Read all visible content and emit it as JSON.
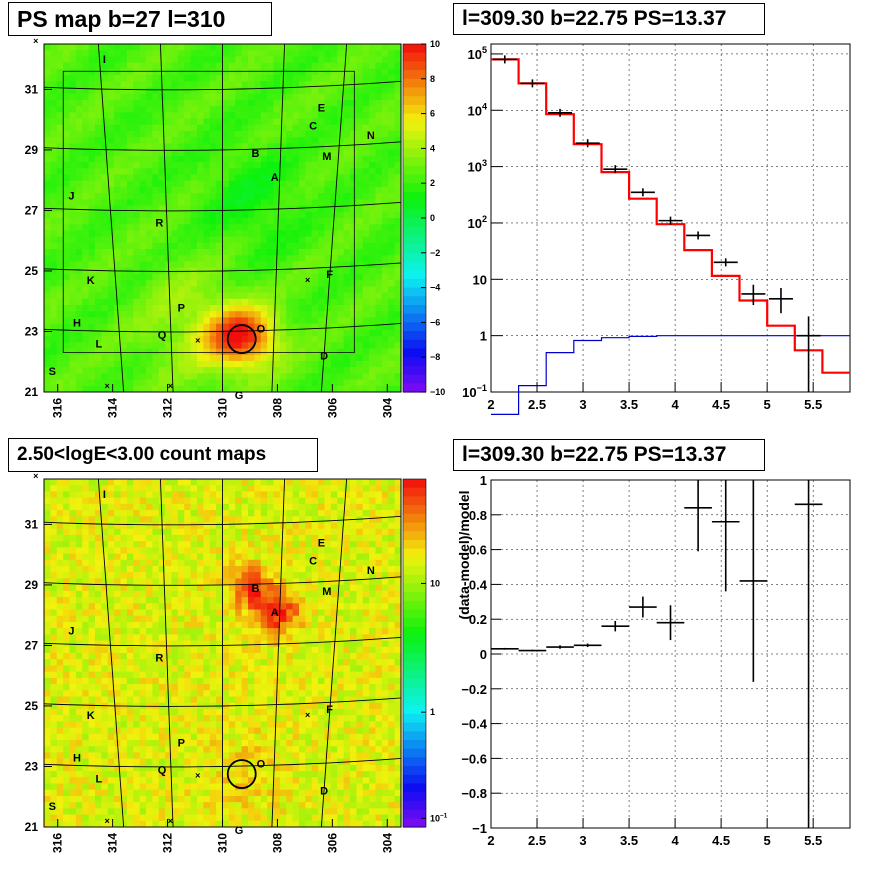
{
  "panels": {
    "ps_map": {
      "title": "PS map b=27 l=310",
      "lon_ticks": [
        "316",
        "314",
        "312",
        "310",
        "308",
        "306",
        "304"
      ],
      "lat_ticks": [
        "31",
        "29",
        "27",
        "25",
        "23",
        "21"
      ],
      "colorbar_ticks": [
        "10",
        "8",
        "6",
        "4",
        "2",
        "0",
        "−2",
        "−4",
        "−6",
        "−8",
        "−10"
      ]
    },
    "spectrum": {
      "title": "l=309.30 b=22.75 PS=13.37",
      "x_ticks": [
        "2",
        "2.5",
        "3",
        "3.5",
        "4",
        "4.5",
        "5",
        "5.5"
      ],
      "y_ticks": [
        "10^5",
        "10^4",
        "10^3",
        "10^2",
        "10",
        "1",
        "10^-1"
      ]
    },
    "count_map": {
      "title": "2.50<logE<3.00 count maps",
      "lon_ticks": [
        "316",
        "314",
        "312",
        "310",
        "308",
        "306",
        "304"
      ],
      "lat_ticks": [
        "31",
        "29",
        "27",
        "25",
        "23",
        "21"
      ],
      "colorbar_ticks": [
        "10",
        "1",
        "10^-1"
      ]
    },
    "residual": {
      "title": "l=309.30 b=22.75 PS=13.37",
      "ylabel": "(data-model)/model",
      "x_ticks": [
        "2",
        "2.5",
        "3",
        "3.5",
        "4",
        "4.5",
        "5",
        "5.5"
      ],
      "y_ticks": [
        "1",
        "0.8",
        "0.6",
        "0.4",
        "0.2",
        "0",
        "−0.2",
        "−0.4",
        "−0.6",
        "−0.8",
        "−1"
      ]
    }
  },
  "source_labels": [
    "I",
    "E",
    "C",
    "N",
    "B",
    "M",
    "A",
    "J",
    "R",
    "K",
    "F",
    "P",
    "H",
    "O",
    "Q",
    "L",
    "D",
    "S",
    "G"
  ],
  "colors": {
    "model": "#ff0000",
    "background": "#0000cc",
    "data": "#000000"
  },
  "chart_data": [
    {
      "type": "heatmap",
      "title": "PS map b=27 l=310",
      "xlabel": "",
      "ylabel": "",
      "xlim": [
        316.5,
        303.5
      ],
      "ylim": [
        21,
        32.5
      ],
      "zlim": [
        -10,
        10
      ],
      "peak": {
        "l": 309.3,
        "b": 22.75,
        "ps": 13.37
      }
    },
    {
      "type": "line",
      "title": "l=309.30 b=22.75 PS=13.37",
      "xlabel": "",
      "ylabel": "",
      "xlim": [
        2,
        5.9
      ],
      "ylim": [
        0.1,
        150000
      ],
      "yscale": "log",
      "series": [
        {
          "style": "data",
          "x": [
            2.15,
            2.45,
            2.75,
            3.05,
            3.35,
            3.65,
            3.95,
            4.25,
            4.55,
            4.85,
            5.15,
            5.45
          ],
          "values": [
            80000,
            30000,
            9000,
            2600,
            900,
            350,
            110,
            60,
            20,
            5.5,
            4.5,
            1.0
          ],
          "yerr_low": [
            0,
            0,
            0,
            0,
            0,
            0,
            0,
            0,
            0,
            2.0,
            2.0,
            0.9
          ],
          "yerr_high": [
            0,
            0,
            0,
            0,
            0,
            0,
            0,
            0,
            0,
            2.5,
            2.5,
            1.2
          ]
        },
        {
          "style": "model_step",
          "edges": [
            2,
            2.3,
            2.6,
            2.9,
            3.2,
            3.5,
            3.8,
            4.1,
            4.4,
            4.7,
            5.0,
            5.3,
            5.6,
            5.9
          ],
          "values": [
            80000,
            30000,
            8500,
            2500,
            800,
            270,
            95,
            33,
            11.5,
            4.2,
            1.5,
            0.55,
            0.22
          ]
        },
        {
          "style": "background_step",
          "edges": [
            2,
            2.3,
            2.6,
            2.9,
            3.2,
            3.5,
            3.8,
            4.1,
            4.4,
            4.7,
            5.0,
            5.3,
            5.6,
            5.9
          ],
          "values": [
            0.04,
            0.13,
            0.5,
            0.82,
            0.92,
            0.97,
            1,
            1,
            1,
            1,
            1,
            1,
            1
          ]
        }
      ]
    },
    {
      "type": "heatmap",
      "title": "2.50<logE<3.00 count maps",
      "xlabel": "",
      "ylabel": "",
      "xlim": [
        316.5,
        303.5
      ],
      "ylim": [
        21,
        32.5
      ],
      "zscale": "log",
      "zlim": [
        0.05,
        30
      ]
    },
    {
      "type": "scatter",
      "title": "l=309.30 b=22.75 PS=13.37",
      "xlabel": "",
      "ylabel": "(data-model)/model",
      "xlim": [
        2,
        5.9
      ],
      "ylim": [
        -1,
        1
      ],
      "x": [
        2.15,
        2.45,
        2.75,
        3.05,
        3.35,
        3.65,
        3.95,
        4.25,
        4.55,
        4.85,
        5.45
      ],
      "xerr": 0.15,
      "values": [
        0.03,
        0.02,
        0.04,
        0.05,
        0.16,
        0.27,
        0.18,
        0.84,
        0.76,
        0.42,
        0.86
      ],
      "yerr": [
        0.005,
        0.005,
        0.01,
        0.01,
        0.03,
        0.06,
        0.1,
        0.25,
        0.4,
        0.58,
        2.0
      ]
    }
  ]
}
